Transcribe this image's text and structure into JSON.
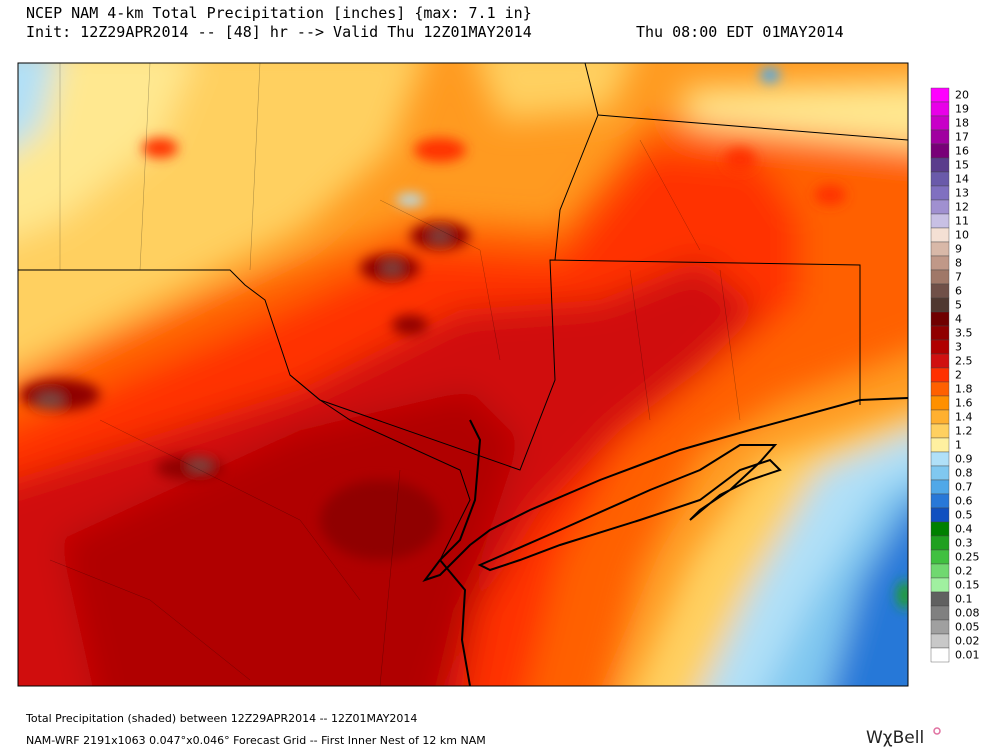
{
  "header": {
    "title": "NCEP NAM 4-km Total Precipitation [inches]  {max:  7.1 in}",
    "init": "Init: 12Z29APR2014 -- [48] hr --> Valid Thu 12Z01MAY2014",
    "valid_local": "Thu 08:00 EDT 01MAY2014"
  },
  "legend": {
    "entries": [
      {
        "label": "20",
        "color": "#ff00ff"
      },
      {
        "label": "19",
        "color": "#e800e8"
      },
      {
        "label": "18",
        "color": "#c800c8"
      },
      {
        "label": "17",
        "color": "#a000a0"
      },
      {
        "label": "16",
        "color": "#780078"
      },
      {
        "label": "15",
        "color": "#5a3c8c"
      },
      {
        "label": "14",
        "color": "#6a5aaa"
      },
      {
        "label": "13",
        "color": "#8070c0"
      },
      {
        "label": "12",
        "color": "#a090d0"
      },
      {
        "label": "11",
        "color": "#c8c0e4"
      },
      {
        "label": "10",
        "color": "#f4e0d4"
      },
      {
        "label": "9",
        "color": "#d8b8a8"
      },
      {
        "label": "8",
        "color": "#c09888"
      },
      {
        "label": "7",
        "color": "#a07868"
      },
      {
        "label": "6",
        "color": "#705048"
      },
      {
        "label": "5",
        "color": "#503830"
      },
      {
        "label": "4",
        "color": "#700000"
      },
      {
        "label": "3.5",
        "color": "#900000"
      },
      {
        "label": "3",
        "color": "#b00000"
      },
      {
        "label": "2.5",
        "color": "#d01010"
      },
      {
        "label": "2",
        "color": "#ff3000"
      },
      {
        "label": "1.8",
        "color": "#ff6000"
      },
      {
        "label": "1.6",
        "color": "#ff9000"
      },
      {
        "label": "1.4",
        "color": "#ffb030"
      },
      {
        "label": "1.2",
        "color": "#ffd060"
      },
      {
        "label": "1",
        "color": "#fff0a0"
      },
      {
        "label": "0.9",
        "color": "#b0e0f8"
      },
      {
        "label": "0.8",
        "color": "#80c8f0"
      },
      {
        "label": "0.7",
        "color": "#50a8e8"
      },
      {
        "label": "0.6",
        "color": "#2878d8"
      },
      {
        "label": "0.5",
        "color": "#1050c0"
      },
      {
        "label": "0.4",
        "color": "#008000"
      },
      {
        "label": "0.3",
        "color": "#20a020"
      },
      {
        "label": "0.25",
        "color": "#40c040"
      },
      {
        "label": "0.2",
        "color": "#70d870"
      },
      {
        "label": "0.15",
        "color": "#a0f0a0"
      },
      {
        "label": "0.1",
        "color": "#606060"
      },
      {
        "label": "0.08",
        "color": "#808080"
      },
      {
        "label": "0.05",
        "color": "#a0a0a0"
      },
      {
        "label": "0.02",
        "color": "#c8c8c8"
      },
      {
        "label": "0.01",
        "color": "#ffffff"
      }
    ]
  },
  "footer": {
    "line1": "Total Precipitation (shaded) between 12Z29APR2014 -- 12Z01MAY2014",
    "line2": "NAM-WRF 2191x1063 0.047°x0.046° Forecast Grid -- First Inner Nest of 12 km NAM",
    "logo": "WχBell"
  }
}
